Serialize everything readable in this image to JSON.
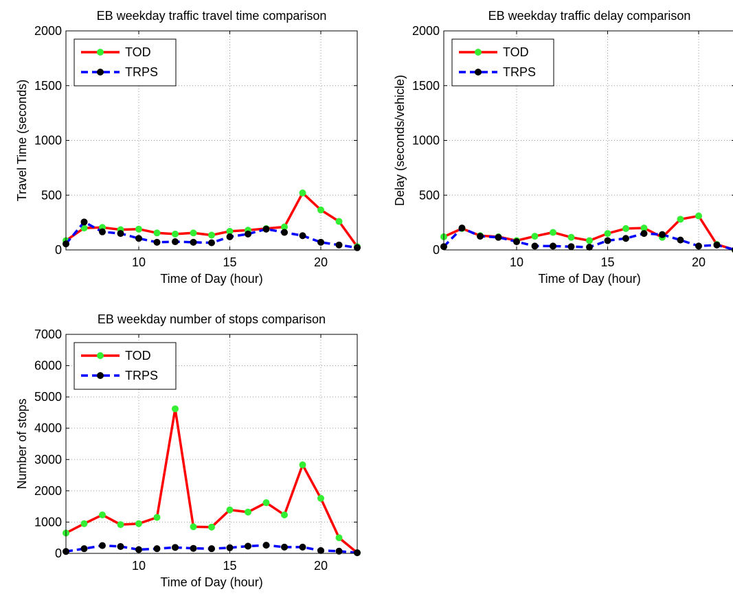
{
  "colors": {
    "tod_line": "#ff0000",
    "tod_marker": "#33ee33",
    "trps_line": "#0000ff",
    "trps_marker": "#000000",
    "grid": "#999999",
    "axis": "#000000"
  },
  "chart_data": [
    {
      "type": "line",
      "title": "EB weekday traffic travel time comparison",
      "xlabel": "Time of Day (hour)",
      "ylabel": "Travel Time (seconds)",
      "xlim": [
        6,
        22
      ],
      "ylim": [
        0,
        2000
      ],
      "xticks": [
        10,
        15,
        20
      ],
      "yticks": [
        0,
        500,
        1000,
        1500,
        2000
      ],
      "grid": true,
      "legend": "top-left",
      "x": [
        6,
        7,
        8,
        9,
        10,
        11,
        12,
        13,
        14,
        15,
        16,
        17,
        18,
        19,
        20,
        21,
        22
      ],
      "series": [
        {
          "name": "TOD",
          "values": [
            85,
            200,
            205,
            185,
            190,
            155,
            145,
            155,
            135,
            170,
            180,
            195,
            210,
            520,
            365,
            260,
            30
          ]
        },
        {
          "name": "TRPS",
          "values": [
            55,
            255,
            165,
            150,
            105,
            70,
            75,
            70,
            65,
            120,
            145,
            190,
            160,
            130,
            70,
            45,
            20
          ]
        }
      ]
    },
    {
      "type": "line",
      "title": "EB weekday traffic delay comparison",
      "xlabel": "Time of Day (hour)",
      "ylabel": "Delay (seconds/vehicle)",
      "xlim": [
        6,
        22
      ],
      "ylim": [
        0,
        2000
      ],
      "xticks": [
        10,
        15,
        20
      ],
      "yticks": [
        0,
        500,
        1000,
        1500,
        2000
      ],
      "grid": true,
      "legend": "top-left",
      "x": [
        6,
        7,
        8,
        9,
        10,
        11,
        12,
        13,
        14,
        15,
        16,
        17,
        18,
        19,
        20,
        21,
        22
      ],
      "series": [
        {
          "name": "TOD",
          "values": [
            120,
            195,
            130,
            120,
            85,
            125,
            160,
            115,
            85,
            150,
            195,
            200,
            115,
            280,
            310,
            50,
            0
          ]
        },
        {
          "name": "TRPS",
          "values": [
            30,
            200,
            125,
            115,
            75,
            35,
            35,
            30,
            25,
            85,
            105,
            150,
            140,
            90,
            35,
            45,
            0
          ]
        }
      ]
    },
    {
      "type": "line",
      "title": "EB weekday number of stops comparison",
      "xlabel": "Time of Day (hour)",
      "ylabel": "Number of stops",
      "xlim": [
        6,
        22
      ],
      "ylim": [
        0,
        7000
      ],
      "xticks": [
        10,
        15,
        20
      ],
      "yticks": [
        0,
        1000,
        2000,
        3000,
        4000,
        5000,
        6000,
        7000
      ],
      "grid": true,
      "legend": "top-left",
      "x": [
        6,
        7,
        8,
        9,
        10,
        11,
        12,
        13,
        14,
        15,
        16,
        17,
        18,
        19,
        20,
        21,
        22
      ],
      "series": [
        {
          "name": "TOD",
          "values": [
            650,
            950,
            1230,
            920,
            950,
            1150,
            4620,
            850,
            840,
            1390,
            1320,
            1620,
            1230,
            2830,
            1760,
            500,
            20
          ]
        },
        {
          "name": "TRPS",
          "values": [
            60,
            150,
            250,
            220,
            120,
            150,
            190,
            160,
            150,
            180,
            230,
            260,
            200,
            200,
            90,
            70,
            20
          ]
        }
      ]
    }
  ]
}
